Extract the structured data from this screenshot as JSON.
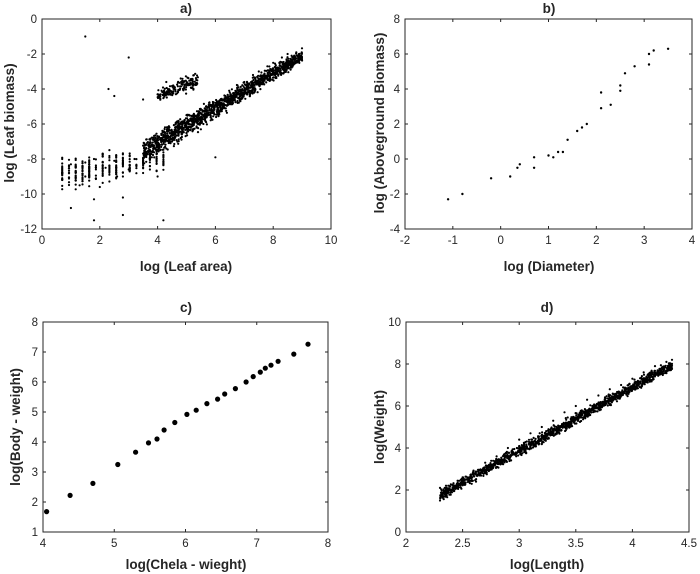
{
  "chart_data": [
    {
      "type": "scatter",
      "title": "a)",
      "xlabel": "log (Leaf area)",
      "ylabel": "log (Leaf biomass)",
      "xlim": [
        0,
        10
      ],
      "ylim": [
        -12,
        0
      ],
      "xticks": [
        0,
        2,
        4,
        6,
        8,
        10
      ],
      "yticks": [
        -12,
        -10,
        -8,
        -6,
        -4,
        -2,
        0
      ],
      "points": [
        [
          0.7,
          -8.0
        ],
        [
          0.7,
          -8.5
        ],
        [
          0.7,
          -9.2
        ],
        [
          1.0,
          -8.3
        ],
        [
          1.0,
          -10.8
        ],
        [
          1.3,
          -9.5
        ],
        [
          1.5,
          -8.2
        ],
        [
          1.5,
          -9.0
        ],
        [
          1.8,
          -8.0
        ],
        [
          1.8,
          -10.3
        ],
        [
          2.0,
          -9.6
        ],
        [
          2.2,
          -8.5
        ],
        [
          2.5,
          -8.1
        ],
        [
          2.6,
          -9.0
        ],
        [
          2.8,
          -10.2
        ],
        [
          3.0,
          -8.6
        ],
        [
          3.2,
          -8.0
        ],
        [
          3.5,
          -8.8
        ],
        [
          3.8,
          -7.9
        ],
        [
          4.0,
          -7.5
        ],
        [
          4.0,
          -9.0
        ],
        [
          4.3,
          -7.4
        ],
        [
          4.5,
          -7.0
        ],
        [
          4.8,
          -6.8
        ],
        [
          5.0,
          -6.5
        ],
        [
          5.2,
          -6.0
        ],
        [
          5.5,
          -5.8
        ],
        [
          5.8,
          -5.2
        ],
        [
          6.0,
          -4.9
        ],
        [
          6.3,
          -4.6
        ],
        [
          6.5,
          -4.2
        ],
        [
          6.8,
          -3.9
        ],
        [
          7.0,
          -3.6
        ],
        [
          7.3,
          -3.2
        ],
        [
          7.5,
          -3.0
        ],
        [
          7.8,
          -2.7
        ],
        [
          8.0,
          -2.5
        ],
        [
          8.3,
          -2.2
        ],
        [
          8.5,
          -2.0
        ],
        [
          8.8,
          -1.9
        ],
        [
          1.5,
          -1.0
        ],
        [
          2.3,
          -4.0
        ],
        [
          2.5,
          -4.4
        ],
        [
          3.0,
          -2.2
        ],
        [
          3.5,
          -4.6
        ],
        [
          4.0,
          -4.3
        ],
        [
          4.3,
          -3.6
        ],
        [
          4.5,
          -4.2
        ],
        [
          4.8,
          -3.4
        ],
        [
          5.0,
          -3.6
        ],
        [
          5.2,
          -3.9
        ],
        [
          5.5,
          -5.6
        ],
        [
          6.0,
          -7.9
        ],
        [
          1.8,
          -11.5
        ],
        [
          2.8,
          -11.2
        ],
        [
          4.2,
          -11.5
        ]
      ],
      "bands": [
        {
          "x": [
            3.5,
            9.0
          ],
          "y_at_start": [
            -8.6,
            -6.6
          ],
          "y_at_end": [
            -2.6,
            -1.6
          ],
          "density": "dense"
        },
        {
          "x": [
            4.0,
            5.4
          ],
          "y_at_start": [
            -4.8,
            -4.0
          ],
          "y_at_end": [
            -4.2,
            -2.8
          ],
          "density": "medium"
        },
        {
          "x": [
            0.7,
            4.2
          ],
          "y_at_start": [
            -10.0,
            -7.6
          ],
          "y_at_end": [
            -9.0,
            -7.0
          ],
          "density": "vertical-streaks"
        }
      ]
    },
    {
      "type": "scatter",
      "title": "b)",
      "xlabel": "log (Diameter)",
      "ylabel": "log (Aboveground Biomass)",
      "xlim": [
        -2,
        4
      ],
      "ylim": [
        -4,
        8
      ],
      "xticks": [
        -2,
        -1,
        0,
        1,
        2,
        3,
        4
      ],
      "yticks": [
        -4,
        -2,
        0,
        2,
        4,
        6,
        8
      ],
      "points": [
        [
          -1.1,
          -2.3
        ],
        [
          -0.8,
          -2.0
        ],
        [
          -0.2,
          -1.1
        ],
        [
          0.2,
          -1.0
        ],
        [
          0.35,
          -0.5
        ],
        [
          0.4,
          -0.3
        ],
        [
          0.7,
          -0.5
        ],
        [
          0.7,
          0.1
        ],
        [
          1.0,
          0.2
        ],
        [
          1.1,
          0.1
        ],
        [
          1.2,
          0.4
        ],
        [
          1.3,
          0.4
        ],
        [
          1.4,
          1.1
        ],
        [
          1.6,
          1.6
        ],
        [
          1.7,
          1.8
        ],
        [
          1.8,
          2.0
        ],
        [
          2.1,
          2.9
        ],
        [
          2.1,
          3.8
        ],
        [
          2.3,
          3.1
        ],
        [
          2.5,
          4.2
        ],
        [
          2.5,
          3.9
        ],
        [
          2.6,
          4.9
        ],
        [
          2.8,
          5.3
        ],
        [
          3.1,
          5.4
        ],
        [
          3.1,
          6.0
        ],
        [
          3.2,
          6.2
        ],
        [
          3.5,
          6.3
        ]
      ]
    },
    {
      "type": "scatter",
      "title": "c)",
      "xlabel": "log(Chela - wieght)",
      "ylabel": "log(Body - weight)",
      "xlim": [
        4,
        8
      ],
      "ylim": [
        1,
        8
      ],
      "xticks": [
        4,
        5,
        6,
        7,
        8
      ],
      "yticks": [
        1,
        2,
        3,
        4,
        5,
        6,
        7,
        8
      ],
      "points": [
        [
          4.05,
          1.68
        ],
        [
          4.38,
          2.22
        ],
        [
          4.7,
          2.62
        ],
        [
          5.05,
          3.25
        ],
        [
          5.3,
          3.66
        ],
        [
          5.48,
          3.97
        ],
        [
          5.6,
          4.1
        ],
        [
          5.7,
          4.4
        ],
        [
          5.85,
          4.65
        ],
        [
          6.02,
          4.92
        ],
        [
          6.15,
          5.06
        ],
        [
          6.3,
          5.28
        ],
        [
          6.45,
          5.43
        ],
        [
          6.55,
          5.6
        ],
        [
          6.7,
          5.78
        ],
        [
          6.85,
          6.0
        ],
        [
          6.95,
          6.18
        ],
        [
          7.05,
          6.33
        ],
        [
          7.12,
          6.46
        ],
        [
          7.2,
          6.56
        ],
        [
          7.3,
          6.69
        ],
        [
          7.52,
          6.93
        ],
        [
          7.72,
          7.26
        ]
      ]
    },
    {
      "type": "scatter",
      "title": "d)",
      "xlabel": "log(Length)",
      "ylabel": "log(Weight)",
      "xlim": [
        2,
        4.5
      ],
      "ylim": [
        0,
        10
      ],
      "xticks": [
        2,
        2.5,
        3,
        3.5,
        4,
        4.5
      ],
      "yticks": [
        0,
        2,
        4,
        6,
        8,
        10
      ],
      "points": [
        [
          2.3,
          1.5
        ],
        [
          2.3,
          2.1
        ],
        [
          2.35,
          1.8
        ],
        [
          2.45,
          2.3
        ],
        [
          2.5,
          2.6
        ],
        [
          2.6,
          2.8
        ],
        [
          2.7,
          3.3
        ],
        [
          2.8,
          3.6
        ],
        [
          2.9,
          4.0
        ],
        [
          3.0,
          4.4
        ],
        [
          3.1,
          4.7
        ],
        [
          3.2,
          5.0
        ],
        [
          3.3,
          5.3
        ],
        [
          3.4,
          5.7
        ],
        [
          3.5,
          6.0
        ],
        [
          3.6,
          6.3
        ],
        [
          3.7,
          6.5
        ],
        [
          3.8,
          6.8
        ],
        [
          3.9,
          7.0
        ],
        [
          4.0,
          7.3
        ],
        [
          4.1,
          7.6
        ],
        [
          4.2,
          7.9
        ],
        [
          4.3,
          8.1
        ],
        [
          4.35,
          8.2
        ]
      ],
      "bands": [
        {
          "x": [
            2.3,
            4.35
          ],
          "y_at_start": [
            1.4,
            2.1
          ],
          "y_at_end": [
            7.6,
            8.3
          ],
          "density": "dense"
        }
      ]
    }
  ]
}
